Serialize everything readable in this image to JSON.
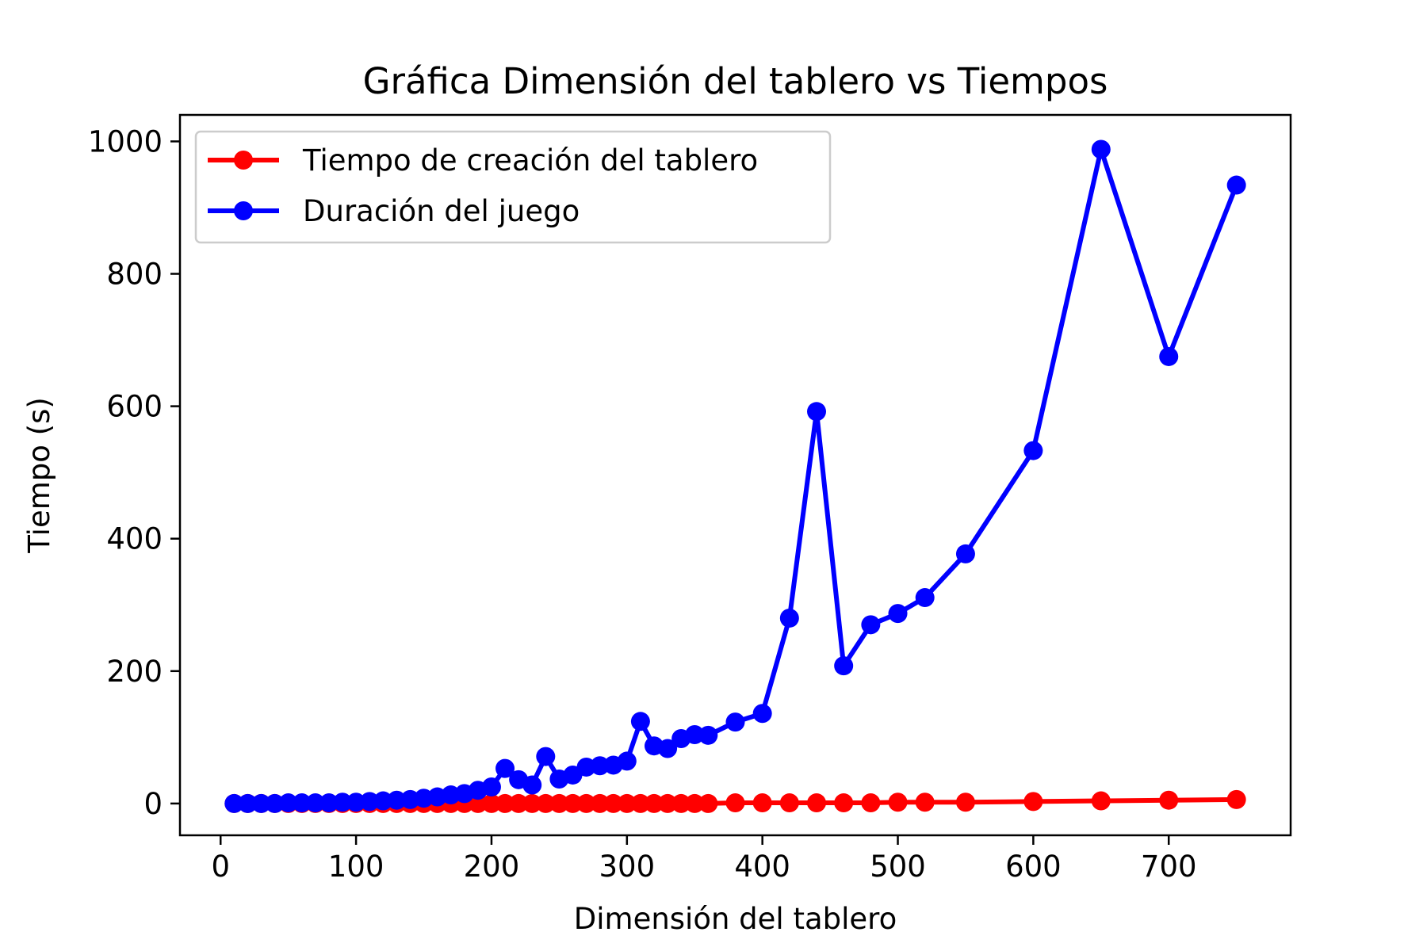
{
  "chart_data": {
    "type": "line",
    "title": "Gráfica Dimensión del tablero vs Tiempos",
    "xlabel": "Dimensión del tablero",
    "ylabel": "Tiempo (s)",
    "xlim": [
      -30,
      790
    ],
    "ylim": [
      -48,
      1040
    ],
    "xticks": [
      0,
      100,
      200,
      300,
      400,
      500,
      600,
      700
    ],
    "yticks": [
      0,
      200,
      400,
      600,
      800,
      1000
    ],
    "x_tick_labels": [
      "0",
      "100",
      "200",
      "300",
      "400",
      "500",
      "600",
      "700"
    ],
    "y_tick_labels": [
      "0",
      "200",
      "400",
      "600",
      "800",
      "1000"
    ],
    "grid": false,
    "legend_position": "upper-left",
    "x": [
      10,
      20,
      30,
      40,
      50,
      60,
      70,
      80,
      90,
      100,
      110,
      120,
      130,
      140,
      150,
      160,
      170,
      180,
      190,
      200,
      210,
      220,
      230,
      240,
      250,
      260,
      270,
      280,
      290,
      300,
      310,
      320,
      330,
      340,
      350,
      360,
      380,
      400,
      420,
      440,
      460,
      480,
      500,
      520,
      550,
      600,
      650,
      700,
      750
    ],
    "series": [
      {
        "name": "Tiempo de creación del tablero",
        "color": "#ff0000",
        "values": [
          0,
          0,
          0,
          0,
          0,
          0,
          0,
          0,
          0,
          0,
          0,
          0,
          0,
          0,
          0,
          0,
          0,
          0,
          0,
          0,
          0,
          0,
          0,
          0,
          0,
          0,
          0,
          0,
          0,
          0,
          0,
          0,
          0,
          0,
          0,
          0,
          1,
          1,
          1,
          1,
          1,
          1,
          2,
          2,
          2,
          3,
          4,
          5,
          6
        ]
      },
      {
        "name": "Duración del juego",
        "color": "#0000ff",
        "values": [
          0,
          0,
          0,
          0,
          1,
          1,
          1,
          1,
          2,
          2,
          3,
          4,
          5,
          6,
          8,
          10,
          13,
          15,
          20,
          25,
          53,
          36,
          28,
          71,
          37,
          43,
          55,
          57,
          58,
          64,
          124,
          87,
          83,
          98,
          104,
          103,
          123,
          136,
          280,
          592,
          208,
          270,
          287,
          311,
          377,
          533,
          988,
          675,
          934
        ]
      }
    ]
  }
}
